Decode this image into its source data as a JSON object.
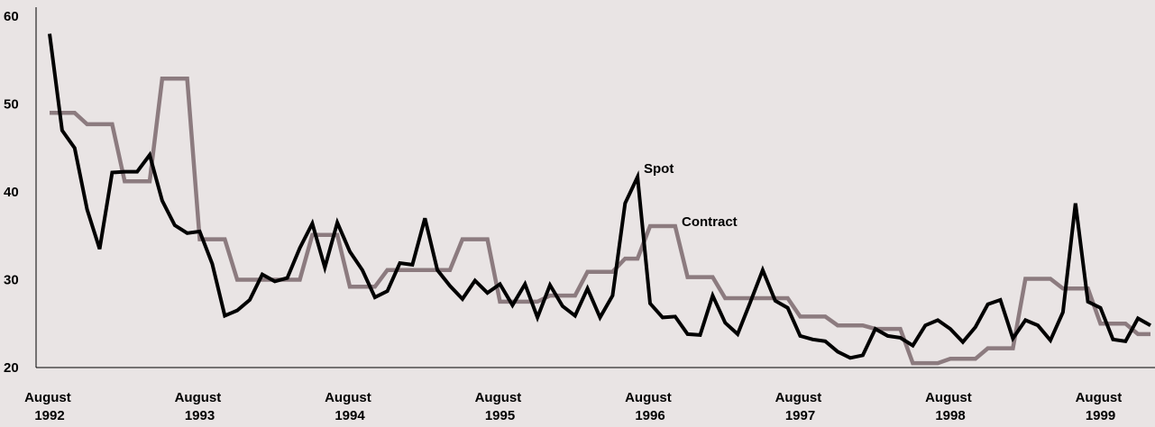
{
  "chart_data": {
    "type": "line",
    "categories": [
      "August 1992",
      null,
      null,
      null,
      null,
      null,
      null,
      null,
      null,
      null,
      null,
      null,
      "August 1993",
      null,
      null,
      null,
      null,
      null,
      null,
      null,
      null,
      null,
      null,
      null,
      "August 1994",
      null,
      null,
      null,
      null,
      null,
      null,
      null,
      null,
      null,
      null,
      null,
      "August 1995",
      null,
      null,
      null,
      null,
      null,
      null,
      null,
      null,
      null,
      null,
      null,
      "August 1996",
      null,
      null,
      null,
      null,
      null,
      null,
      null,
      null,
      null,
      null,
      null,
      "August 1997",
      null,
      null,
      null,
      null,
      null,
      null,
      null,
      null,
      null,
      null,
      null,
      "August 1998",
      null,
      null,
      null,
      null,
      null,
      null,
      null,
      null,
      null,
      null,
      null,
      "August 1999",
      null,
      null,
      null,
      null
    ],
    "series": [
      {
        "name": "Spot",
        "color": "#000000",
        "values": [
          58,
          47,
          45,
          38,
          33.5,
          42.2,
          42.3,
          42.3,
          44.2,
          39,
          36.2,
          35.3,
          35.5,
          31.8,
          25.9,
          26.5,
          27.7,
          30.6,
          29.8,
          30.2,
          33.6,
          36.4,
          31.4,
          36.5,
          33.2,
          31.1,
          28,
          28.7,
          31.9,
          31.7,
          37,
          31.1,
          29.3,
          27.8,
          29.9,
          28.5,
          29.5,
          27.1,
          29.5,
          25.7,
          29.4,
          27,
          25.9,
          29,
          25.7,
          28.2,
          38.7,
          41.7,
          27.3,
          25.7,
          25.8,
          23.8,
          23.7,
          28.2,
          25.1,
          23.8,
          27.4,
          31.1,
          27.6,
          26.8,
          23.6,
          23.2,
          23,
          21.8,
          21.1,
          21.4,
          24.4,
          23.6,
          23.4,
          22.5,
          24.8,
          25.4,
          24.4,
          22.9,
          24.6,
          27.2,
          27.7,
          23.3,
          25.4,
          24.8,
          23.1,
          26.3,
          38.7,
          27.5,
          26.8,
          23.2,
          23,
          25.6,
          24.8
        ]
      },
      {
        "name": "Contract",
        "color": "#8c7b7f",
        "values": [
          49,
          49,
          49,
          47.7,
          47.7,
          47.7,
          41.2,
          41.2,
          41.2,
          52.9,
          52.9,
          52.9,
          34.6,
          34.6,
          34.6,
          30,
          30,
          30,
          30,
          30,
          30,
          35.1,
          35.1,
          35.1,
          29.2,
          29.2,
          29.2,
          31.1,
          31.1,
          31.1,
          31.1,
          31.1,
          31.1,
          34.6,
          34.6,
          34.6,
          27.5,
          27.5,
          27.5,
          27.5,
          28.2,
          28.2,
          28.2,
          30.9,
          30.9,
          30.9,
          32.4,
          32.4,
          36.1,
          36.1,
          36.1,
          30.3,
          30.3,
          30.3,
          27.9,
          27.9,
          27.9,
          27.9,
          27.9,
          27.9,
          25.8,
          25.8,
          25.8,
          24.8,
          24.8,
          24.8,
          24.4,
          24.4,
          24.4,
          20.5,
          20.5,
          20.5,
          21,
          21,
          21,
          22.2,
          22.2,
          22.2,
          30.1,
          30.1,
          30.1,
          29,
          29,
          29,
          25,
          25,
          25,
          23.8,
          23.8
        ]
      }
    ],
    "ylim": [
      20,
      60
    ],
    "yticks": [
      20,
      30,
      40,
      50,
      60
    ],
    "grid": false
  }
}
